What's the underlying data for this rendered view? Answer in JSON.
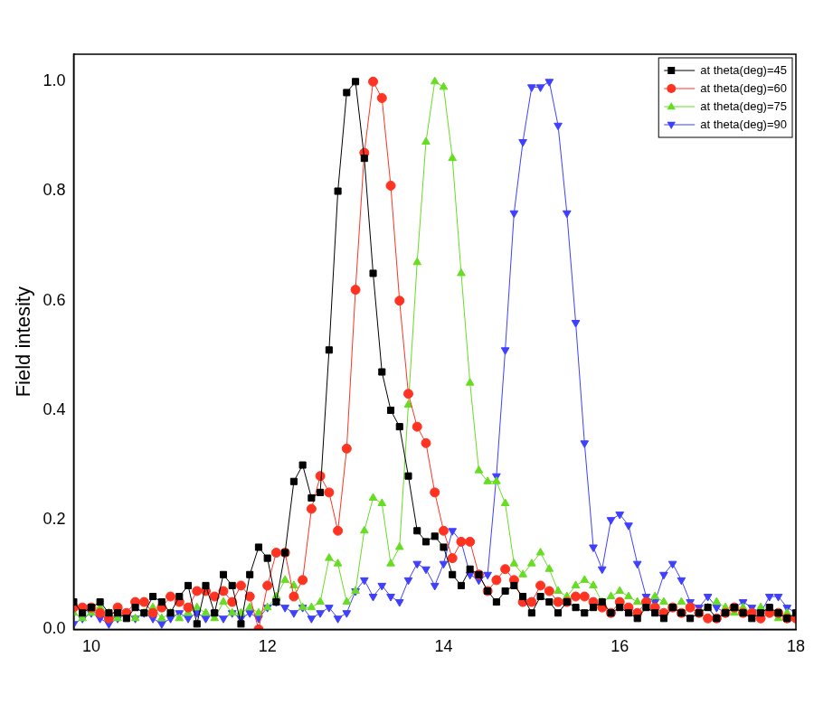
{
  "chart_data": {
    "type": "line",
    "y_label": "Field intesity",
    "xlim": [
      9.8,
      18
    ],
    "xticks": [
      10,
      12,
      14,
      16,
      18
    ],
    "ylim": [
      0,
      1.05
    ],
    "yticks": [
      {
        "value": 0,
        "label": "0.0"
      },
      0.2,
      0.4,
      0.6,
      0.8,
      {
        "value": 1,
        "label": "1.0"
      }
    ],
    "grid": false,
    "legend": "upper right",
    "x": [
      9.8,
      9.9,
      10.0,
      10.1,
      10.2,
      10.3,
      10.4,
      10.5,
      10.6,
      10.7,
      10.8,
      10.9,
      11.0,
      11.1,
      11.2,
      11.3,
      11.4,
      11.5,
      11.6,
      11.7,
      11.8,
      11.9,
      12.0,
      12.1,
      12.2,
      12.3,
      12.4,
      12.5,
      12.6,
      12.7,
      12.8,
      12.9,
      13.0,
      13.1,
      13.2,
      13.3,
      13.4,
      13.5,
      13.6,
      13.7,
      13.8,
      13.9,
      14.0,
      14.1,
      14.2,
      14.3,
      14.4,
      14.5,
      14.6,
      14.7,
      14.8,
      14.9,
      15.0,
      15.1,
      15.2,
      15.3,
      15.4,
      15.5,
      15.6,
      15.7,
      15.8,
      15.9,
      16.0,
      16.1,
      16.2,
      16.3,
      16.4,
      16.5,
      16.6,
      16.7,
      16.8,
      16.9,
      17.0,
      17.1,
      17.2,
      17.3,
      17.4,
      17.5,
      17.6,
      17.7,
      17.8,
      17.9,
      18.0
    ],
    "series": [
      {
        "name": "at theta(deg)=45",
        "color": "#000000",
        "marker": "square",
        "line_style": "solid",
        "values": [
          0.05,
          0.03,
          0.04,
          0.05,
          0.03,
          0.03,
          0.02,
          0.04,
          0.03,
          0.06,
          0.05,
          0.03,
          0.06,
          0.08,
          0.01,
          0.08,
          0.03,
          0.1,
          0.08,
          0.01,
          0.1,
          0.15,
          0.13,
          0.05,
          0.14,
          0.27,
          0.3,
          0.24,
          0.25,
          0.51,
          0.8,
          0.98,
          1.0,
          0.86,
          0.65,
          0.47,
          0.4,
          0.37,
          0.28,
          0.18,
          0.16,
          0.17,
          0.15,
          0.1,
          0.08,
          0.11,
          0.1,
          0.07,
          0.05,
          0.07,
          0.08,
          0.06,
          0.03,
          0.06,
          0.05,
          0.03,
          0.05,
          0.04,
          0.03,
          0.04,
          0.05,
          0.03,
          0.04,
          0.03,
          0.02,
          0.04,
          0.03,
          0.02,
          0.04,
          0.03,
          0.02,
          0.03,
          0.04,
          0.02,
          0.03,
          0.04,
          0.03,
          0.02,
          0.03,
          0.04,
          0.03,
          0.02,
          0.03
        ]
      },
      {
        "name": "at theta(deg)=60",
        "color": "#ff3322",
        "marker": "circle",
        "line_style": "solid",
        "values": [
          0.04,
          0.04,
          0.04,
          0.03,
          0.02,
          0.04,
          0.03,
          0.05,
          0.05,
          0.03,
          0.04,
          0.06,
          0.05,
          0.04,
          0.07,
          0.07,
          0.06,
          0.07,
          0.05,
          0.08,
          0.06,
          0.0,
          0.08,
          0.14,
          0.14,
          0.06,
          0.09,
          0.22,
          0.28,
          0.25,
          0.18,
          0.33,
          0.62,
          0.87,
          1.0,
          0.97,
          0.81,
          0.6,
          0.43,
          0.37,
          0.34,
          0.25,
          0.18,
          0.13,
          0.16,
          0.16,
          0.1,
          0.07,
          0.09,
          0.11,
          0.09,
          0.05,
          0.05,
          0.08,
          0.07,
          0.05,
          0.05,
          0.06,
          0.06,
          0.05,
          0.04,
          0.03,
          0.05,
          0.04,
          0.03,
          0.05,
          0.04,
          0.03,
          0.04,
          0.03,
          0.04,
          0.03,
          0.02,
          0.02,
          0.03,
          0.04,
          0.03,
          0.03,
          0.02,
          0.03,
          0.03,
          0.02,
          0.02
        ]
      },
      {
        "name": "at theta(deg)=75",
        "color": "#66dd22",
        "marker": "triangle-up",
        "line_style": "solid",
        "values": [
          0.03,
          0.02,
          0.03,
          0.04,
          0.03,
          0.02,
          0.03,
          0.02,
          0.03,
          0.04,
          0.02,
          0.03,
          0.02,
          0.03,
          0.04,
          0.03,
          0.02,
          0.05,
          0.03,
          0.03,
          0.04,
          0.03,
          0.04,
          0.06,
          0.09,
          0.08,
          0.04,
          0.04,
          0.05,
          0.13,
          0.12,
          0.05,
          0.07,
          0.18,
          0.24,
          0.23,
          0.12,
          0.15,
          0.41,
          0.67,
          0.89,
          1.0,
          0.99,
          0.86,
          0.65,
          0.45,
          0.29,
          0.27,
          0.27,
          0.23,
          0.12,
          0.1,
          0.12,
          0.14,
          0.11,
          0.07,
          0.06,
          0.08,
          0.09,
          0.08,
          0.05,
          0.06,
          0.07,
          0.06,
          0.05,
          0.04,
          0.06,
          0.05,
          0.04,
          0.05,
          0.04,
          0.03,
          0.04,
          0.05,
          0.04,
          0.03,
          0.04,
          0.03,
          0.04,
          0.03,
          0.02,
          0.03,
          0.02
        ]
      },
      {
        "name": "at theta(deg)=90",
        "color": "#3f3fff",
        "marker": "triangle-down",
        "line_style": "solid",
        "values": [
          0.01,
          0.02,
          0.03,
          0.02,
          0.01,
          0.02,
          0.03,
          0.02,
          0.03,
          0.02,
          0.01,
          0.02,
          0.03,
          0.02,
          0.03,
          0.02,
          0.03,
          0.02,
          0.03,
          0.02,
          0.03,
          0.02,
          0.04,
          0.05,
          0.04,
          0.03,
          0.04,
          0.02,
          0.03,
          0.04,
          0.02,
          0.03,
          0.07,
          0.09,
          0.06,
          0.08,
          0.06,
          0.05,
          0.09,
          0.12,
          0.11,
          0.08,
          0.12,
          0.18,
          0.16,
          0.1,
          0.09,
          0.1,
          0.28,
          0.51,
          0.76,
          0.89,
          0.99,
          0.99,
          1.0,
          0.92,
          0.76,
          0.56,
          0.34,
          0.15,
          0.11,
          0.2,
          0.21,
          0.19,
          0.12,
          0.06,
          0.05,
          0.1,
          0.12,
          0.09,
          0.05,
          0.04,
          0.06,
          0.04,
          0.03,
          0.04,
          0.05,
          0.04,
          0.03,
          0.06,
          0.06,
          0.04,
          0.03
        ]
      }
    ]
  }
}
